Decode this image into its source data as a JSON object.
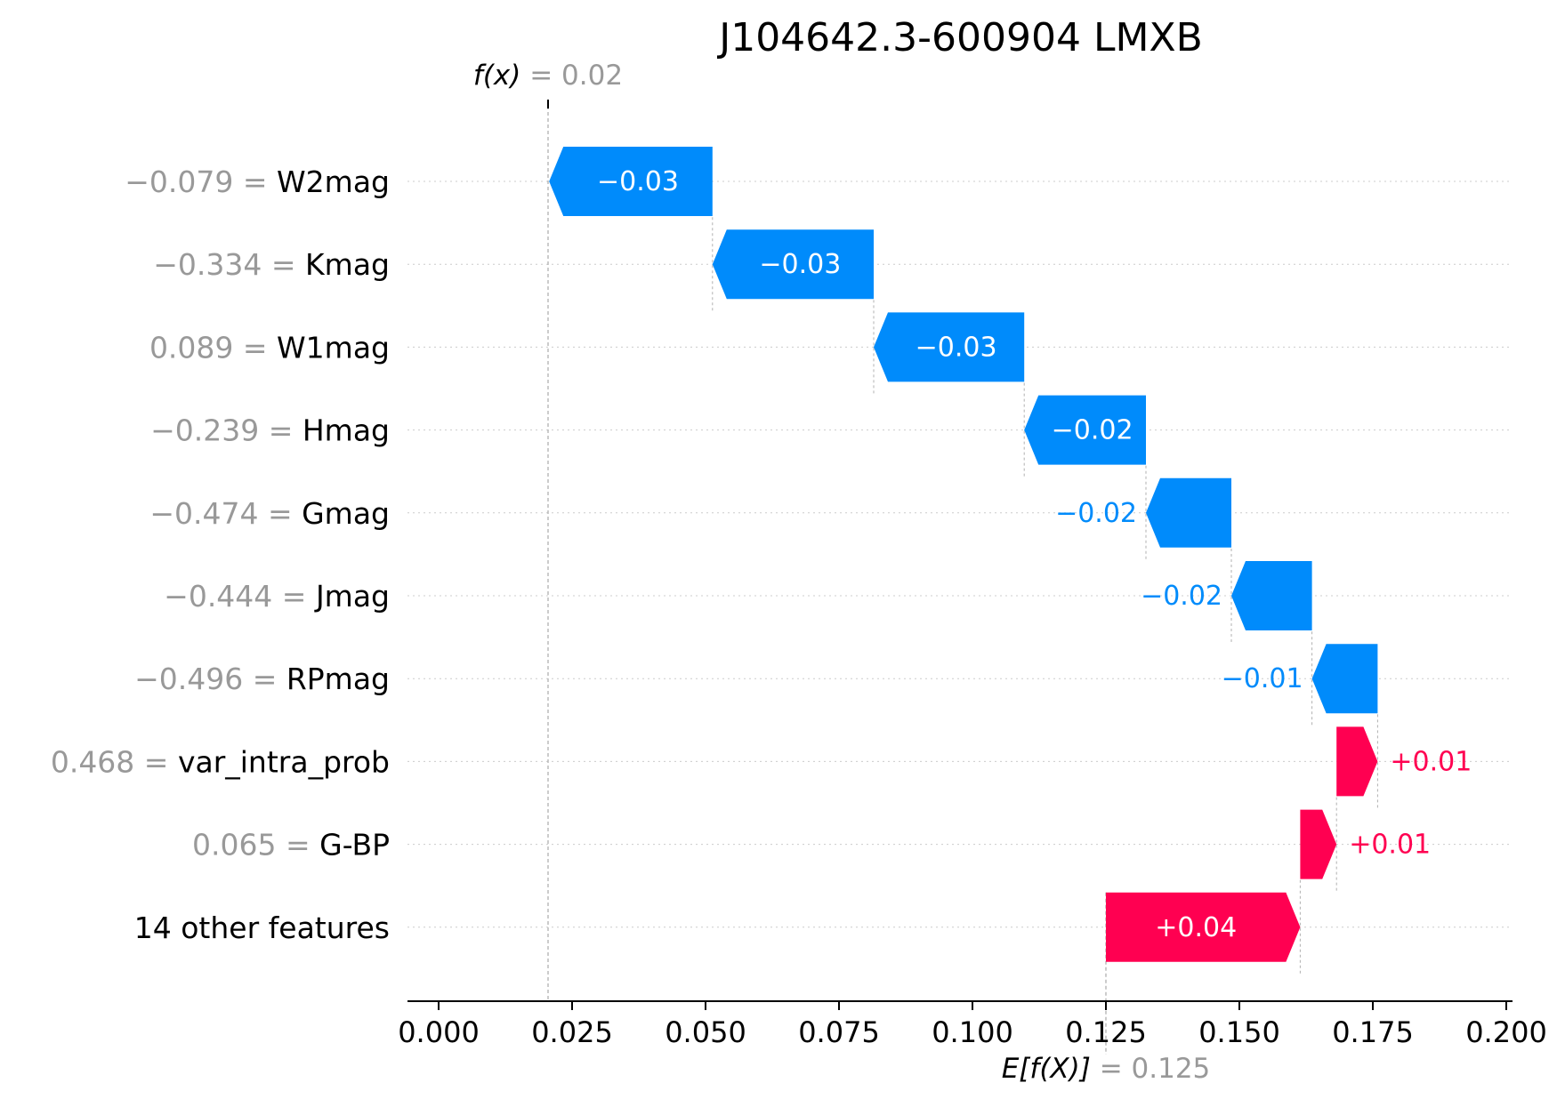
{
  "chart_data": {
    "type": "waterfall",
    "title": "J104642.3-600904 LMXB",
    "xlim": [
      0.0,
      0.2
    ],
    "x_ticks": [
      0.0,
      0.025,
      0.05,
      0.075,
      0.1,
      0.125,
      0.15,
      0.175,
      0.2
    ],
    "x_tick_labels": [
      "0.000",
      "0.025",
      "0.050",
      "0.075",
      "0.100",
      "0.125",
      "0.150",
      "0.175",
      "0.200"
    ],
    "fx": {
      "label_prefix": "f(x)",
      "label_value": "= 0.02",
      "value": 0.0205
    },
    "base": {
      "label_prefix": "E[f(X)]",
      "label_value": "= 0.125",
      "value": 0.125
    },
    "features": [
      {
        "name": "W2mag",
        "value_label": "−0.079 =",
        "contribution": -0.0306,
        "label": "−0.03"
      },
      {
        "name": "Kmag",
        "value_label": "−0.334 =",
        "contribution": -0.0302,
        "label": "−0.03"
      },
      {
        "name": "W1mag",
        "value_label": "0.089 =",
        "contribution": -0.0282,
        "label": "−0.03"
      },
      {
        "name": "Hmag",
        "value_label": "−0.239 =",
        "contribution": -0.0228,
        "label": "−0.02"
      },
      {
        "name": "Gmag",
        "value_label": "−0.474 =",
        "contribution": -0.016,
        "label": "−0.02"
      },
      {
        "name": "Jmag",
        "value_label": "−0.444 =",
        "contribution": -0.0151,
        "label": "−0.02"
      },
      {
        "name": "RPmag",
        "value_label": "−0.496 =",
        "contribution": -0.0123,
        "label": "−0.01"
      },
      {
        "name": "var_intra_prob",
        "value_label": "0.468 =",
        "contribution": 0.0077,
        "label": "+0.01"
      },
      {
        "name": "G-BP",
        "value_label": "0.065 =",
        "contribution": 0.0068,
        "label": "+0.01"
      },
      {
        "name": "14 other features",
        "value_label": "",
        "contribution": 0.0364,
        "label": "+0.04"
      }
    ],
    "colors": {
      "negative": "#008bfb",
      "positive": "#ff0051",
      "value_label": "#999999",
      "text": "#000000"
    }
  }
}
